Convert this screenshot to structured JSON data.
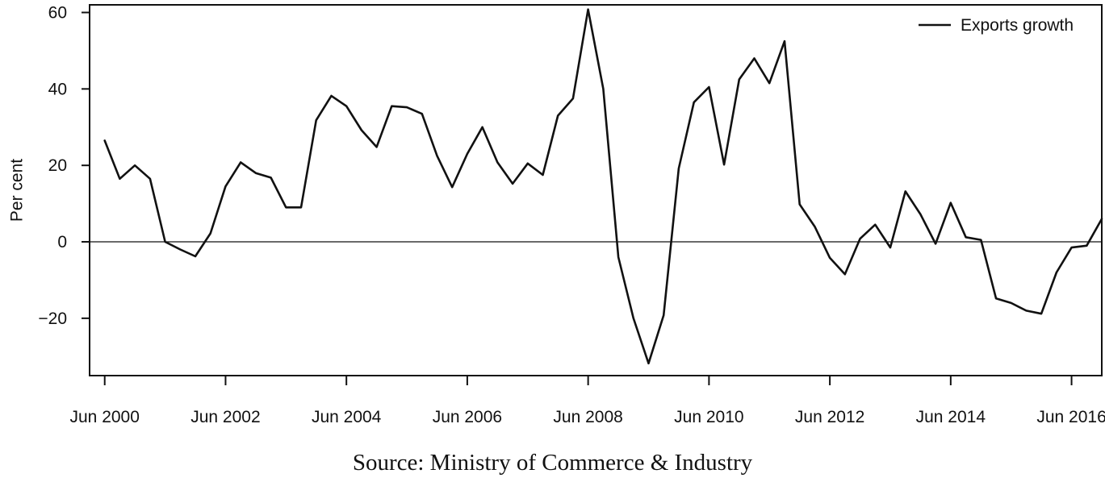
{
  "chart_data": {
    "type": "line",
    "title": "",
    "xlabel": "",
    "ylabel": "Per cent",
    "ylim": [
      -35,
      62
    ],
    "xlim": [
      "2000-03",
      "2016-12"
    ],
    "yticks": [
      60,
      40,
      20,
      0,
      -20
    ],
    "ytick_labels": [
      "60",
      "40",
      "20",
      "0",
      "−20"
    ],
    "xticks": [
      "2000-06",
      "2002-06",
      "2004-06",
      "2006-06",
      "2008-06",
      "2010-06",
      "2012-06",
      "2014-06",
      "2016-06"
    ],
    "xtick_labels": [
      "Jun 2000",
      "Jun 2002",
      "Jun 2004",
      "Jun 2006",
      "Jun 2008",
      "Jun 2010",
      "Jun 2012",
      "Jun 2014",
      "Jun 2016"
    ],
    "reference_line_y": 0,
    "grid": false,
    "legend_position": "top-right",
    "line_color": "#111111",
    "series": [
      {
        "name": "Exports growth",
        "x": [
          "2000-06",
          "2000-09",
          "2000-12",
          "2001-03",
          "2001-06",
          "2001-09",
          "2001-12",
          "2002-03",
          "2002-06",
          "2002-09",
          "2002-12",
          "2003-03",
          "2003-06",
          "2003-09",
          "2003-12",
          "2004-03",
          "2004-06",
          "2004-09",
          "2004-12",
          "2005-03",
          "2005-06",
          "2005-09",
          "2005-12",
          "2006-03",
          "2006-06",
          "2006-09",
          "2006-12",
          "2007-03",
          "2007-06",
          "2007-09",
          "2007-12",
          "2008-03",
          "2008-06",
          "2008-09",
          "2008-12",
          "2009-03",
          "2009-06",
          "2009-09",
          "2009-12",
          "2010-03",
          "2010-06",
          "2010-09",
          "2010-12",
          "2011-03",
          "2011-06",
          "2011-09",
          "2011-12",
          "2012-03",
          "2012-06",
          "2012-09",
          "2012-12",
          "2013-03",
          "2013-06",
          "2013-09",
          "2013-12",
          "2014-03",
          "2014-06",
          "2014-09",
          "2014-12",
          "2015-03",
          "2015-06",
          "2015-09",
          "2015-12",
          "2016-03",
          "2016-06",
          "2016-09",
          "2016-12"
        ],
        "values": [
          26.5,
          16.5,
          20,
          16.5,
          0,
          -2,
          -3.8,
          2.2,
          14.5,
          20.8,
          18,
          16.8,
          9,
          9,
          31.8,
          38.2,
          35.5,
          29.2,
          24.8,
          35.5,
          35.2,
          33.5,
          22.5,
          14.3,
          23,
          30,
          20.8,
          15.2,
          20.5,
          17.5,
          33,
          37.5,
          60.8,
          40,
          -4,
          -20,
          -31.8,
          -19.2,
          19.2,
          36.5,
          40.5,
          20.2,
          42.5,
          48,
          41.5,
          52.5,
          9.8,
          4,
          -4.2,
          -8.5,
          0.8,
          4.5,
          -1.5,
          13.2,
          7.2,
          -0.5,
          10.2,
          1.2,
          0.5,
          -14.8,
          -16,
          -18,
          -18.8,
          -8,
          -1.5,
          -1,
          6
        ]
      }
    ],
    "source_caption": "Source: Ministry of Commerce & Industry"
  }
}
